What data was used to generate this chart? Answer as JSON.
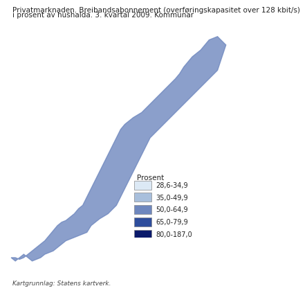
{
  "title_line1": "Privatmarknaden. Breibandsabonnement (overføringskapasitet over 128 kbit/s)",
  "title_line2": "i prosent av hushalda. 3. kvartal 2009. Kommunar",
  "legend_title": "Prosent",
  "legend_entries": [
    {
      "label": "28,6-34,9",
      "color": "#dce9f5"
    },
    {
      "label": "35,0-49,9",
      "color": "#a8bfdc"
    },
    {
      "label": "50,0-64,9",
      "color": "#6e87be"
    },
    {
      "label": "65,0-79,9",
      "color": "#2e4d9c"
    },
    {
      "label": "80,0-187,0",
      "color": "#0a1a6b"
    }
  ],
  "footer": "Kartgrunnlag: Statens kartverk.",
  "bg_color": "#ffffff",
  "title_fontsize": 7.5,
  "legend_fontsize": 7.5,
  "footer_fontsize": 6.5
}
